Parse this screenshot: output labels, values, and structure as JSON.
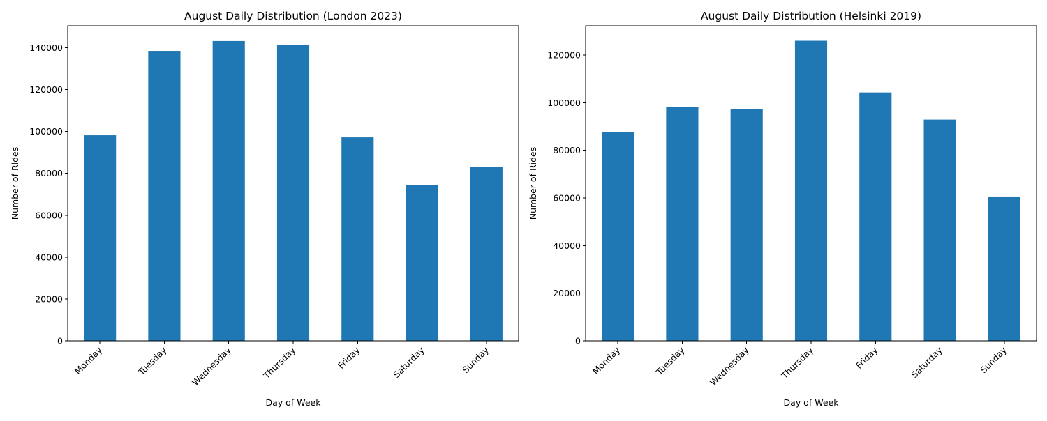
{
  "chart_data": [
    {
      "type": "bar",
      "title": "August Daily Distribution (London 2023)",
      "xlabel": "Day of Week",
      "ylabel": "Number of Rides",
      "categories": [
        "Monday",
        "Tuesday",
        "Wednesday",
        "Thursday",
        "Friday",
        "Saturday",
        "Sunday"
      ],
      "values": [
        98200,
        138500,
        143200,
        141200,
        97200,
        74500,
        83100
      ],
      "ylim": [
        0,
        150500
      ],
      "yticks": [
        0,
        20000,
        40000,
        60000,
        80000,
        100000,
        120000,
        140000
      ],
      "color": "#1f77b4",
      "grid": false,
      "legend": false
    },
    {
      "type": "bar",
      "title": "August Daily Distribution (Helsinki 2019)",
      "xlabel": "Day of Week",
      "ylabel": "Number of Rides",
      "categories": [
        "Monday",
        "Tuesday",
        "Wednesday",
        "Thursday",
        "Friday",
        "Saturday",
        "Sunday"
      ],
      "values": [
        87800,
        98200,
        97300,
        126000,
        104300,
        92900,
        60600
      ],
      "ylim": [
        0,
        132300
      ],
      "yticks": [
        0,
        20000,
        40000,
        60000,
        80000,
        100000,
        120000
      ],
      "color": "#1f77b4",
      "grid": false,
      "legend": false
    }
  ]
}
